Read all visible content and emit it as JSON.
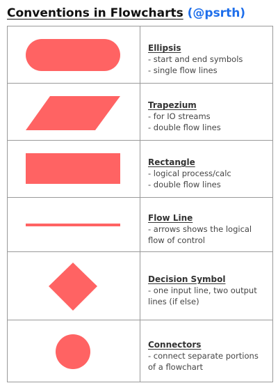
{
  "title": {
    "main": "Conventions in Flowcharts",
    "handle": "(@psrth)"
  },
  "colors": {
    "shape_fill": "#ff6363",
    "border": "#999999",
    "handle": "#1f6feb"
  },
  "rows": [
    {
      "shape": "ellipse",
      "title": "Ellipsis",
      "lines": [
        "- start and end symbols",
        "- single flow lines"
      ]
    },
    {
      "shape": "trapezium",
      "title": "Trapezium",
      "lines": [
        "- for IO streams",
        "- double flow lines"
      ]
    },
    {
      "shape": "rectangle",
      "title": "Rectangle",
      "lines": [
        "- logical process/calc",
        "- double flow lines"
      ]
    },
    {
      "shape": "flow-line",
      "title": "Flow Line",
      "lines": [
        "- arrows shows the logical",
        "flow of control"
      ]
    },
    {
      "shape": "diamond",
      "title": "Decision Symbol",
      "lines": [
        "- one input line, two output",
        "lines (if else)"
      ]
    },
    {
      "shape": "circle",
      "title": "Connectors",
      "lines": [
        "- connect separate portions",
        "of a flowchart"
      ]
    }
  ]
}
